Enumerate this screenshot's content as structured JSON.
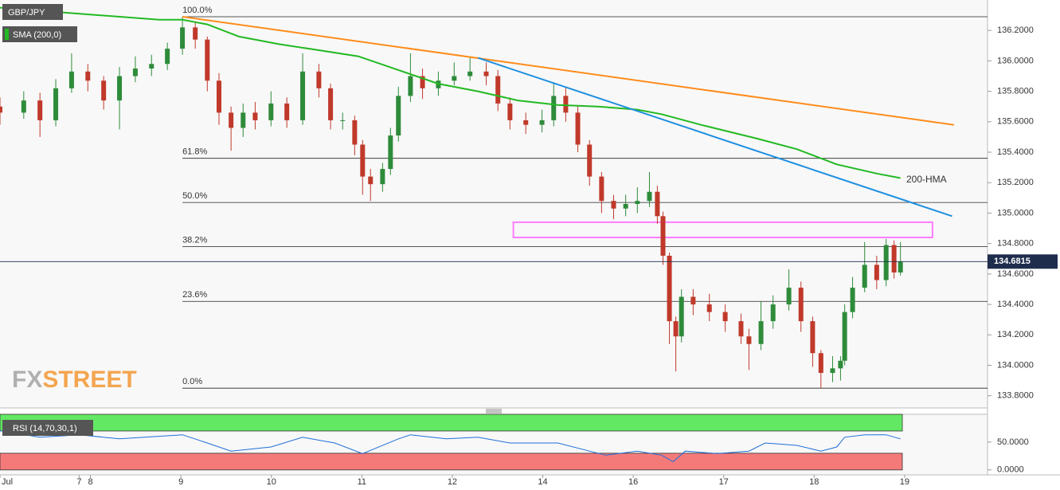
{
  "chart_data": [
    {
      "type": "candlestick",
      "title": "GBP/JPY",
      "up_color": "#2e8b3a",
      "down_color": "#c0392b",
      "xlim": [
        0,
        262
      ],
      "ylim": [
        133.72,
        136.4
      ],
      "xticks": [
        {
          "value": 0,
          "label": "Jul"
        },
        {
          "value": 21,
          "label": "7"
        },
        {
          "value": 24,
          "label": "8"
        },
        {
          "value": 48,
          "label": "9"
        },
        {
          "value": 72,
          "label": "10"
        },
        {
          "value": 96,
          "label": "11"
        },
        {
          "value": 120,
          "label": "12"
        },
        {
          "value": 144,
          "label": "14"
        },
        {
          "value": 168,
          "label": "16"
        },
        {
          "value": 192,
          "label": "17"
        },
        {
          "value": 216,
          "label": "18"
        },
        {
          "value": 240,
          "label": "19"
        }
      ],
      "yticks": [
        {
          "value": 133.8,
          "label": "133.8000"
        },
        {
          "value": 134.0,
          "label": "134.0000"
        },
        {
          "value": 134.2,
          "label": "134.2000"
        },
        {
          "value": 134.4,
          "label": "134.4000"
        },
        {
          "value": 134.6,
          "label": "134.6000"
        },
        {
          "value": 134.8,
          "label": "134.8000"
        },
        {
          "value": 135.0,
          "label": "135.0000"
        },
        {
          "value": 135.2,
          "label": "135.2000"
        },
        {
          "value": 135.4,
          "label": "135.4000"
        },
        {
          "value": 135.6,
          "label": "135.6000"
        },
        {
          "value": 135.8,
          "label": "135.8000"
        },
        {
          "value": 136.0,
          "label": "136.0000"
        },
        {
          "value": 136.2,
          "label": "136.2000"
        }
      ],
      "x": [
        0,
        6.3,
        10.6,
        14.8,
        19.0,
        23.3,
        27.5,
        31.7,
        35.9,
        40.2,
        44.4,
        48.4,
        51.8,
        55.0,
        58.1,
        61.3,
        64.5,
        67.7,
        71.9,
        76.1,
        80.3,
        84.6,
        87.7,
        90.9,
        94.1,
        96.2,
        98.3,
        101.5,
        103.6,
        105.7,
        108.9,
        112.1,
        116.3,
        120.5,
        124.7,
        129.0,
        132.1,
        135.3,
        139.5,
        143.8,
        146.9,
        150.1,
        153.3,
        156.4,
        159.6,
        162.8,
        166.0,
        169.1,
        172.3,
        174.4,
        175.9,
        177.6,
        179.3,
        180.8,
        183.9,
        188.2,
        192.4,
        196.6,
        198.7,
        201.9,
        205.1,
        209.3,
        212.5,
        215.6,
        217.8,
        220.9,
        223.0,
        224.1,
        226.2,
        229.4,
        232.6,
        235.1,
        237.2,
        238.9
      ],
      "open": [
        135.7,
        135.66,
        135.74,
        135.61,
        135.82,
        135.93,
        135.87,
        135.74,
        135.9,
        135.95,
        135.98,
        136.08,
        136.22,
        136.14,
        135.87,
        135.66,
        135.56,
        135.66,
        135.61,
        135.72,
        135.61,
        135.93,
        135.82,
        135.61,
        135.61,
        135.45,
        135.24,
        135.19,
        135.29,
        135.51,
        135.77,
        135.9,
        135.82,
        135.87,
        135.9,
        135.93,
        135.9,
        135.72,
        135.61,
        135.58,
        135.61,
        135.77,
        135.66,
        135.45,
        135.24,
        135.08,
        135.03,
        135.06,
        135.08,
        135.14,
        134.98,
        134.72,
        134.29,
        134.19,
        134.45,
        134.4,
        134.35,
        134.29,
        134.19,
        134.14,
        134.29,
        134.4,
        134.51,
        134.29,
        134.08,
        133.95,
        133.98,
        134.03,
        134.35,
        134.51,
        134.66,
        134.56,
        134.79,
        134.61
      ],
      "high": [
        135.76,
        135.8,
        135.79,
        135.88,
        136.05,
        135.98,
        135.9,
        135.96,
        136.03,
        136.04,
        136.12,
        136.29,
        136.26,
        136.16,
        135.92,
        135.7,
        135.72,
        135.73,
        135.8,
        135.76,
        136.05,
        135.98,
        135.85,
        135.66,
        135.64,
        135.48,
        135.29,
        135.33,
        135.56,
        135.83,
        136.05,
        135.95,
        135.93,
        135.99,
        136.03,
        135.99,
        135.94,
        135.76,
        135.66,
        135.68,
        135.86,
        135.83,
        135.7,
        135.48,
        135.27,
        135.12,
        135.12,
        135.17,
        135.27,
        135.18,
        135.01,
        134.74,
        134.32,
        134.5,
        134.5,
        134.47,
        134.4,
        134.34,
        134.24,
        134.42,
        134.46,
        134.63,
        134.55,
        134.32,
        134.1,
        134.06,
        134.06,
        134.4,
        134.58,
        134.81,
        134.72,
        134.83,
        134.82,
        134.81
      ],
      "low": [
        135.58,
        135.62,
        135.5,
        135.57,
        135.79,
        135.8,
        135.68,
        135.55,
        135.86,
        135.9,
        135.94,
        136.04,
        136.08,
        135.8,
        135.58,
        135.41,
        135.5,
        135.55,
        135.57,
        135.56,
        135.58,
        135.76,
        135.55,
        135.55,
        135.38,
        135.12,
        135.08,
        135.14,
        135.25,
        135.47,
        135.73,
        135.75,
        135.77,
        135.84,
        135.87,
        135.84,
        135.67,
        135.55,
        135.52,
        135.53,
        135.57,
        135.6,
        135.4,
        135.18,
        135.0,
        134.96,
        134.98,
        135.0,
        135.04,
        134.93,
        134.66,
        134.14,
        133.96,
        134.15,
        134.33,
        134.29,
        134.22,
        134.14,
        133.97,
        134.1,
        134.24,
        134.36,
        134.22,
        133.99,
        133.85,
        133.89,
        133.9,
        134.0,
        134.31,
        134.48,
        134.5,
        134.52,
        134.57,
        134.59
      ],
      "close": [
        135.66,
        135.74,
        135.61,
        135.82,
        135.93,
        135.87,
        135.74,
        135.9,
        135.95,
        135.98,
        136.08,
        136.22,
        136.14,
        135.87,
        135.66,
        135.56,
        135.66,
        135.61,
        135.72,
        135.61,
        135.93,
        135.82,
        135.61,
        135.61,
        135.45,
        135.24,
        135.19,
        135.29,
        135.51,
        135.77,
        135.9,
        135.82,
        135.87,
        135.9,
        135.93,
        135.9,
        135.72,
        135.61,
        135.58,
        135.61,
        135.77,
        135.66,
        135.45,
        135.24,
        135.08,
        135.03,
        135.06,
        135.08,
        135.14,
        134.98,
        134.72,
        134.29,
        134.19,
        134.45,
        134.4,
        134.35,
        134.29,
        134.19,
        134.14,
        134.29,
        134.4,
        134.51,
        134.29,
        134.08,
        133.95,
        133.98,
        134.03,
        134.35,
        134.51,
        134.66,
        134.56,
        134.79,
        134.61,
        134.68
      ],
      "last_price": {
        "value": 134.6815,
        "label": "134.6815",
        "color": "#1f2d4d"
      },
      "sma": {
        "name": "SMA (200,0)",
        "annotation": "200-HMA",
        "color": "#22b922",
        "x": [
          0,
          21.1,
          42.3,
          48.4,
          55.0,
          63.4,
          74.0,
          84.6,
          95.1,
          105.7,
          116.3,
          126.8,
          137.4,
          148.0,
          158.6,
          169.1,
          175.5,
          186.0,
          200.8,
          211.4,
          222.0,
          232.6,
          238.9
        ],
        "values": [
          136.35,
          136.31,
          136.27,
          136.27,
          136.24,
          136.16,
          136.11,
          136.07,
          136.03,
          135.94,
          135.85,
          135.8,
          135.74,
          135.71,
          135.7,
          135.68,
          135.65,
          135.58,
          135.49,
          135.42,
          135.32,
          135.26,
          135.23
        ]
      },
      "trendlines": [
        {
          "color": "#ff8c1a",
          "x": [
            48.4,
            253.1
          ],
          "values": [
            136.29,
            135.58
          ]
        },
        {
          "color": "#1e90e0",
          "x": [
            126.8,
            252.6
          ],
          "values": [
            136.02,
            134.98
          ]
        }
      ],
      "zone": {
        "color": "#ff7dff",
        "x": [
          136.2,
          247.4
        ],
        "values": [
          134.84,
          134.94
        ]
      },
      "fib_levels": {
        "start_x": 48.4,
        "levels": [
          {
            "ratio": 100.0,
            "label": "100.0%",
            "price": 136.29
          },
          {
            "ratio": 61.8,
            "label": "61.8%",
            "price": 135.36
          },
          {
            "ratio": 50.0,
            "label": "50.0%",
            "price": 135.07
          },
          {
            "ratio": 38.2,
            "label": "38.2%",
            "price": 134.78
          },
          {
            "ratio": 23.6,
            "label": "23.6%",
            "price": 134.42
          },
          {
            "ratio": 0.0,
            "label": "0.0%",
            "price": 133.85
          }
        ]
      },
      "watermark": [
        "FX",
        "STREET"
      ]
    },
    {
      "type": "line",
      "title": "RSI (14,70,30,1)",
      "color": "#1e6fd9",
      "xlim": [
        0,
        262
      ],
      "ylim": [
        -6,
        100
      ],
      "yticks": [
        {
          "value": 0,
          "label": "0.0000"
        },
        {
          "value": 50,
          "label": "50.0000"
        }
      ],
      "bands": [
        {
          "from": 70,
          "to": 100,
          "color": "#63e863"
        },
        {
          "from": 0,
          "to": 30,
          "color": "#f47a7a"
        }
      ],
      "x": [
        0,
        10.6,
        21.1,
        31.7,
        48.4,
        55.0,
        61.3,
        71.9,
        80.3,
        88.8,
        96.2,
        105.7,
        108.9,
        118.4,
        126.8,
        135.3,
        148.0,
        156.4,
        160.7,
        169.1,
        175.5,
        178.6,
        181.8,
        190.3,
        198.7,
        203.0,
        211.4,
        217.8,
        222.0,
        224.1,
        229.4,
        235.1,
        238.9
      ],
      "values": [
        70.6,
        58.8,
        63.2,
        55.9,
        63.2,
        48.5,
        33.8,
        41.2,
        58.8,
        48.5,
        29.4,
        55.9,
        63.2,
        55.9,
        58.8,
        48.5,
        48.5,
        33.8,
        26.5,
        33.8,
        26.5,
        14.7,
        33.8,
        29.4,
        33.8,
        48.5,
        44.1,
        33.8,
        41.2,
        58.8,
        63.2,
        63.2,
        55.9
      ]
    }
  ]
}
